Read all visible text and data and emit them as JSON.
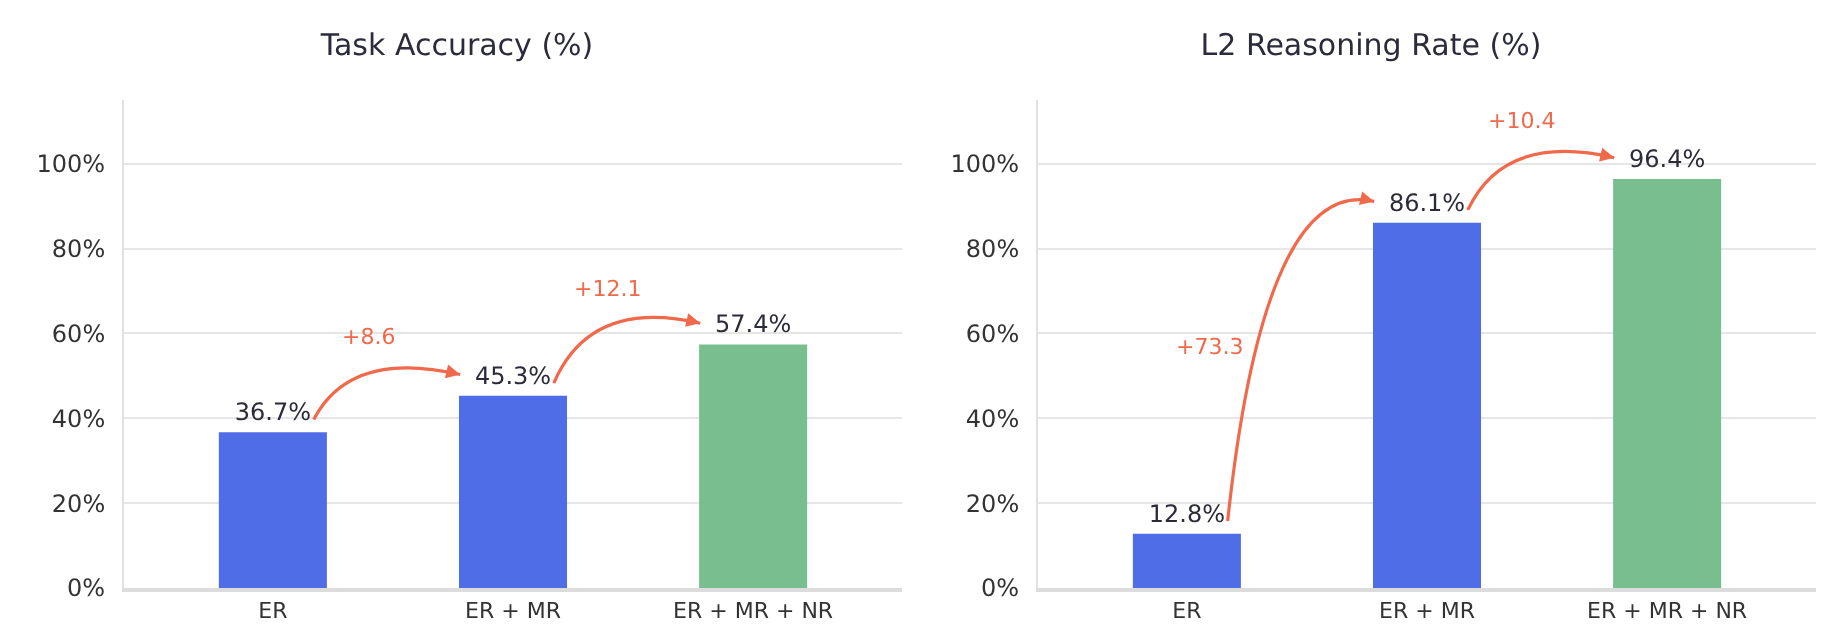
{
  "chart_data": [
    {
      "type": "bar",
      "title": "Task Accuracy (%)",
      "categories": [
        "ER",
        "ER + MR",
        "ER + MR + NR"
      ],
      "values": [
        36.7,
        45.3,
        57.4
      ],
      "colors": [
        "#4f6de6",
        "#4f6de6",
        "#79be8f"
      ],
      "value_labels": [
        "36.7%",
        "45.3%",
        "57.4%"
      ],
      "ylim": [
        0,
        115
      ],
      "yticks": [
        {
          "value": 0,
          "label": "0%"
        },
        {
          "value": 20,
          "label": "20%"
        },
        {
          "value": 40,
          "label": "40%"
        },
        {
          "value": 60,
          "label": "60%"
        },
        {
          "value": 80,
          "label": "80%"
        },
        {
          "value": 100,
          "label": "100%"
        }
      ],
      "grid": "y",
      "annotations": [
        "+8.6",
        "+12.1"
      ]
    },
    {
      "type": "bar",
      "title": "L2 Reasoning Rate (%)",
      "categories": [
        "ER",
        "ER + MR",
        "ER + MR + NR"
      ],
      "values": [
        12.8,
        86.1,
        96.4
      ],
      "colors": [
        "#4f6de6",
        "#4f6de6",
        "#79be8f"
      ],
      "value_labels": [
        "12.8%",
        "86.1%",
        "96.4%"
      ],
      "ylim": [
        0,
        115
      ],
      "yticks": [
        {
          "value": 0,
          "label": "0%"
        },
        {
          "value": 20,
          "label": "20%"
        },
        {
          "value": 40,
          "label": "40%"
        },
        {
          "value": 60,
          "label": "60%"
        },
        {
          "value": 80,
          "label": "80%"
        },
        {
          "value": 100,
          "label": "100%"
        }
      ],
      "grid": "y",
      "annotations": [
        "+73.3",
        "+10.4"
      ]
    }
  ]
}
